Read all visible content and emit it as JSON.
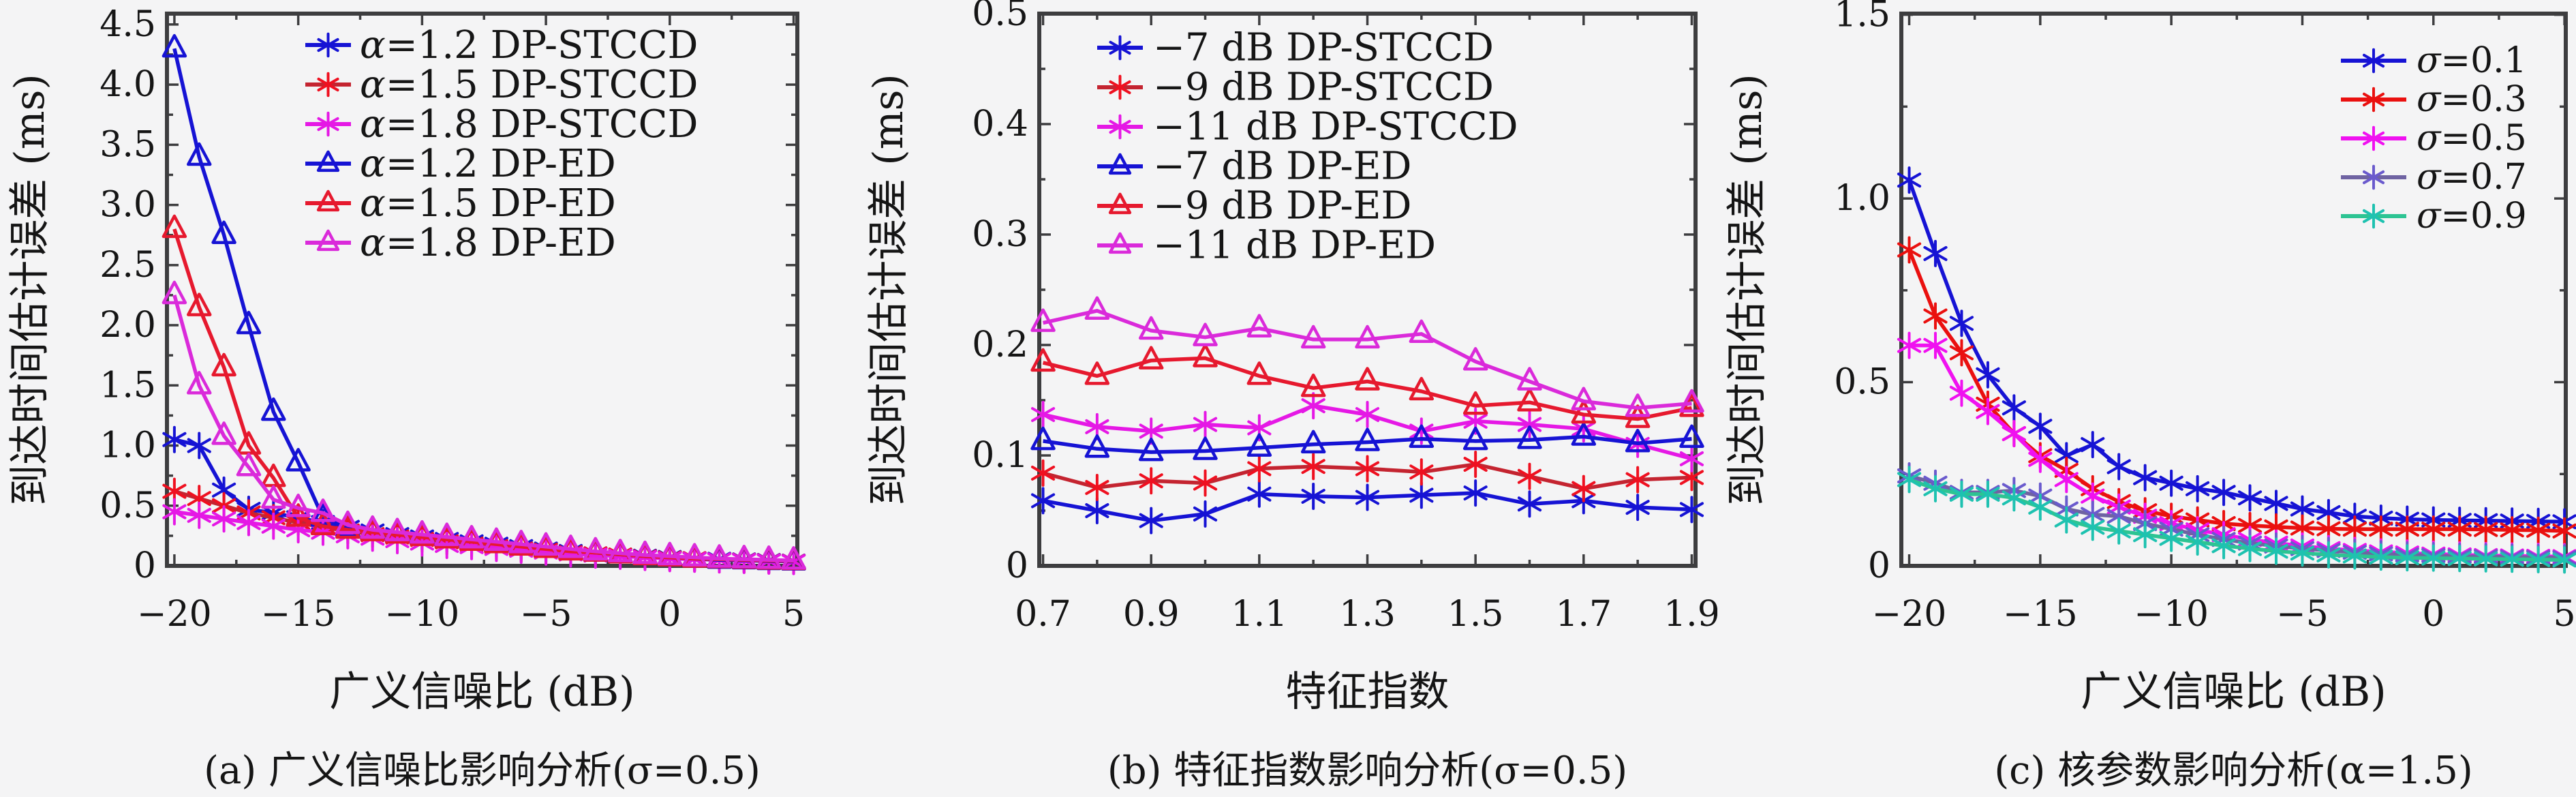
{
  "figure": {
    "bg": "#f4f4f5",
    "frame_color": "#3d3d3f",
    "text_color": "#151515"
  },
  "chart_data": [
    {
      "id": "a",
      "type": "line",
      "caption": "(a) 广义信噪比影响分析(σ=0.5)",
      "xlabel": "广义信噪比 (dB)",
      "ylabel": "到达时间估计误差 (ms)",
      "xlim": [
        -20.3,
        5.15
      ],
      "ylim": [
        0,
        4.59
      ],
      "xticks": [
        -20,
        -15,
        -10,
        -5,
        0,
        5
      ],
      "xtick_labels": [
        "−20",
        "−15",
        "−10",
        "−5",
        "0",
        "5"
      ],
      "yticks": [
        0,
        0.5,
        1.0,
        1.5,
        2.0,
        2.5,
        3.0,
        3.5,
        4.0,
        4.5
      ],
      "ytick_labels": [
        "0",
        "0.5",
        "1.0",
        "1.5",
        "2.0",
        "2.5",
        "3.0",
        "3.5",
        "4.0",
        "4.5"
      ],
      "x_minor_step": 2.5,
      "y_minor_step": 0.25,
      "legend_position": "upper-center-left",
      "x": [
        -20,
        -19,
        -18,
        -17,
        -16,
        -15,
        -14,
        -13,
        -12,
        -11,
        -10,
        -9,
        -8,
        -7,
        -6,
        -5,
        -4,
        -3,
        -2,
        -1,
        0,
        1,
        2,
        3,
        4,
        5
      ],
      "series": [
        {
          "label": "α=1.2 DP-STCCD",
          "color": "#1613d4",
          "marker": "asterisk",
          "values": [
            1.05,
            1.0,
            0.63,
            0.47,
            0.44,
            0.4,
            0.36,
            0.32,
            0.29,
            0.26,
            0.24,
            0.22,
            0.2,
            0.18,
            0.16,
            0.14,
            0.12,
            0.1,
            0.09,
            0.08,
            0.07,
            0.06,
            0.055,
            0.05,
            0.045,
            0.04
          ]
        },
        {
          "label": "α=1.5 DP-STCCD",
          "color": "#c42430",
          "marker_color": "#ef1020",
          "marker": "asterisk",
          "values": [
            0.62,
            0.56,
            0.5,
            0.44,
            0.4,
            0.36,
            0.32,
            0.29,
            0.26,
            0.24,
            0.22,
            0.2,
            0.18,
            0.16,
            0.14,
            0.13,
            0.11,
            0.1,
            0.09,
            0.075,
            0.065,
            0.06,
            0.05,
            0.047,
            0.042,
            0.038
          ]
        },
        {
          "label": "α=1.8 DP-STCCD",
          "color": "#e518e5",
          "marker": "asterisk",
          "values": [
            0.45,
            0.42,
            0.39,
            0.36,
            0.33,
            0.3,
            0.28,
            0.25,
            0.23,
            0.21,
            0.19,
            0.17,
            0.16,
            0.145,
            0.13,
            0.115,
            0.1,
            0.09,
            0.08,
            0.07,
            0.06,
            0.055,
            0.05,
            0.045,
            0.04,
            0.036
          ]
        },
        {
          "label": "α=1.2 DP-ED",
          "color": "#1613d4",
          "marker": "triangle",
          "values": [
            4.3,
            3.4,
            2.75,
            2.0,
            1.28,
            0.86,
            0.4,
            0.31,
            0.29,
            0.27,
            0.25,
            0.23,
            0.21,
            0.19,
            0.17,
            0.15,
            0.13,
            0.11,
            0.095,
            0.08,
            0.07,
            0.06,
            0.05,
            0.046,
            0.04,
            0.036
          ]
        },
        {
          "label": "α=1.5 DP-ED",
          "color": "#e6192e",
          "marker": "triangle",
          "values": [
            2.8,
            2.15,
            1.65,
            1.0,
            0.73,
            0.4,
            0.33,
            0.3,
            0.28,
            0.26,
            0.24,
            0.22,
            0.2,
            0.18,
            0.16,
            0.14,
            0.12,
            0.11,
            0.095,
            0.08,
            0.07,
            0.06,
            0.055,
            0.05,
            0.044,
            0.04
          ]
        },
        {
          "label": "α=1.8 DP-ED",
          "color": "#da2ada",
          "marker": "triangle",
          "values": [
            2.25,
            1.5,
            1.08,
            0.82,
            0.55,
            0.48,
            0.44,
            0.34,
            0.3,
            0.28,
            0.26,
            0.24,
            0.22,
            0.2,
            0.18,
            0.16,
            0.14,
            0.12,
            0.105,
            0.09,
            0.08,
            0.07,
            0.06,
            0.055,
            0.05,
            0.044
          ]
        }
      ]
    },
    {
      "id": "b",
      "type": "line",
      "caption": "(b) 特征指数影响分析(σ=0.5)",
      "xlabel": "特征指数",
      "ylabel": "到达时间估计误差 (ms)",
      "xlim": [
        0.693,
        1.907
      ],
      "ylim": [
        0,
        0.5
      ],
      "xticks": [
        0.7,
        0.9,
        1.1,
        1.3,
        1.5,
        1.7,
        1.9
      ],
      "xtick_labels": [
        "0.7",
        "0.9",
        "1.1",
        "1.3",
        "1.5",
        "1.7",
        "1.9"
      ],
      "yticks": [
        0,
        0.1,
        0.2,
        0.3,
        0.4,
        0.5
      ],
      "ytick_labels": [
        "0",
        "0.1",
        "0.2",
        "0.3",
        "0.4",
        "0.5"
      ],
      "x_minor_step": 0.1,
      "y_minor_step": 0.05,
      "legend_position": "upper-left",
      "x": [
        0.7,
        0.8,
        0.9,
        1.0,
        1.1,
        1.2,
        1.3,
        1.4,
        1.5,
        1.6,
        1.7,
        1.8,
        1.9
      ],
      "series": [
        {
          "label": "−7 dB DP-STCCD",
          "color": "#1613d4",
          "marker": "asterisk",
          "values": [
            0.059,
            0.05,
            0.041,
            0.047,
            0.065,
            0.063,
            0.062,
            0.064,
            0.066,
            0.056,
            0.059,
            0.053,
            0.051
          ]
        },
        {
          "label": "−9 dB DP-STCCD",
          "color": "#c42430",
          "marker_color": "#ef1020",
          "marker": "asterisk",
          "values": [
            0.084,
            0.071,
            0.077,
            0.075,
            0.088,
            0.09,
            0.088,
            0.085,
            0.092,
            0.081,
            0.07,
            0.078,
            0.08
          ]
        },
        {
          "label": "−11 dB DP-STCCD",
          "color": "#e518e5",
          "marker": "asterisk",
          "values": [
            0.137,
            0.126,
            0.122,
            0.128,
            0.125,
            0.145,
            0.137,
            0.122,
            0.131,
            0.128,
            0.124,
            0.11,
            0.097
          ]
        },
        {
          "label": "−7 dB DP-ED",
          "color": "#1613d4",
          "marker": "triangle",
          "values": [
            0.113,
            0.106,
            0.103,
            0.104,
            0.107,
            0.11,
            0.112,
            0.115,
            0.113,
            0.114,
            0.117,
            0.111,
            0.115
          ]
        },
        {
          "label": "−9 dB DP-ED",
          "color": "#e6192e",
          "marker": "triangle",
          "values": [
            0.184,
            0.172,
            0.186,
            0.188,
            0.172,
            0.161,
            0.167,
            0.158,
            0.145,
            0.148,
            0.137,
            0.133,
            0.143
          ]
        },
        {
          "label": "−11 dB DP-ED",
          "color": "#da2ada",
          "marker": "triangle",
          "values": [
            0.22,
            0.231,
            0.213,
            0.207,
            0.215,
            0.205,
            0.205,
            0.21,
            0.185,
            0.167,
            0.149,
            0.143,
            0.147
          ]
        }
      ]
    },
    {
      "id": "c",
      "type": "line",
      "caption": "(c) 核参数影响分析(α=1.5)",
      "xlabel": "广义信噪比 (dB)",
      "ylabel": "到达时间估计误差 (ms)",
      "xlim": [
        -20.3,
        5.05
      ],
      "ylim": [
        0,
        1.503
      ],
      "xticks": [
        -20,
        -15,
        -10,
        -5,
        0,
        5
      ],
      "xtick_labels": [
        "−20",
        "−15",
        "−10",
        "−5",
        "0",
        "5"
      ],
      "yticks": [
        0,
        0.5,
        1.0,
        1.5
      ],
      "ytick_labels": [
        "0",
        "0.5",
        "1.0",
        "1.5"
      ],
      "x_minor_step": 2.5,
      "y_minor_step": 0.25,
      "legend_position": "upper-right",
      "x": [
        -20,
        -19,
        -18,
        -17,
        -16,
        -15,
        -14,
        -13,
        -12,
        -11,
        -10,
        -9,
        -8,
        -7,
        -6,
        -5,
        -4,
        -3,
        -2,
        -1,
        0,
        1,
        2,
        3,
        4,
        5
      ],
      "series": [
        {
          "label": "σ=0.1",
          "color": "#1613d4",
          "marker": "asterisk",
          "values": [
            1.05,
            0.85,
            0.66,
            0.52,
            0.43,
            0.38,
            0.3,
            0.33,
            0.27,
            0.24,
            0.225,
            0.21,
            0.2,
            0.185,
            0.17,
            0.155,
            0.145,
            0.135,
            0.13,
            0.127,
            0.125,
            0.124,
            0.123,
            0.122,
            0.121,
            0.12
          ]
        },
        {
          "label": "σ=0.3",
          "color": "#ea100f",
          "marker": "asterisk",
          "values": [
            0.86,
            0.68,
            0.58,
            0.44,
            0.36,
            0.3,
            0.26,
            0.21,
            0.175,
            0.15,
            0.135,
            0.125,
            0.115,
            0.11,
            0.106,
            0.103,
            0.101,
            0.1,
            0.1,
            0.1,
            0.1,
            0.1,
            0.099,
            0.098,
            0.097,
            0.095
          ]
        },
        {
          "label": "σ=0.5",
          "color": "#f011f0",
          "marker": "asterisk",
          "values": [
            0.6,
            0.6,
            0.47,
            0.42,
            0.36,
            0.29,
            0.235,
            0.19,
            0.16,
            0.135,
            0.115,
            0.098,
            0.085,
            0.072,
            0.062,
            0.054,
            0.047,
            0.042,
            0.038,
            0.035,
            0.032,
            0.03,
            0.028,
            0.027,
            0.026,
            0.025
          ]
        },
        {
          "label": "σ=0.7",
          "color": "#6f63a2",
          "marker_color": "#6a5acd",
          "marker": "asterisk",
          "values": [
            0.245,
            0.225,
            0.2,
            0.2,
            0.205,
            0.19,
            0.155,
            0.14,
            0.135,
            0.115,
            0.1,
            0.085,
            0.072,
            0.062,
            0.054,
            0.047,
            0.042,
            0.037,
            0.033,
            0.03,
            0.028,
            0.026,
            0.025,
            0.024,
            0.023,
            0.022
          ]
        },
        {
          "label": "σ=0.9",
          "color": "#2dc493",
          "marker_color": "#1ec2b0",
          "marker": "asterisk",
          "values": [
            0.235,
            0.21,
            0.195,
            0.195,
            0.185,
            0.16,
            0.125,
            0.105,
            0.095,
            0.085,
            0.075,
            0.065,
            0.055,
            0.047,
            0.04,
            0.035,
            0.03,
            0.027,
            0.024,
            0.022,
            0.021,
            0.02,
            0.019,
            0.018,
            0.017,
            0.016
          ]
        }
      ]
    }
  ]
}
